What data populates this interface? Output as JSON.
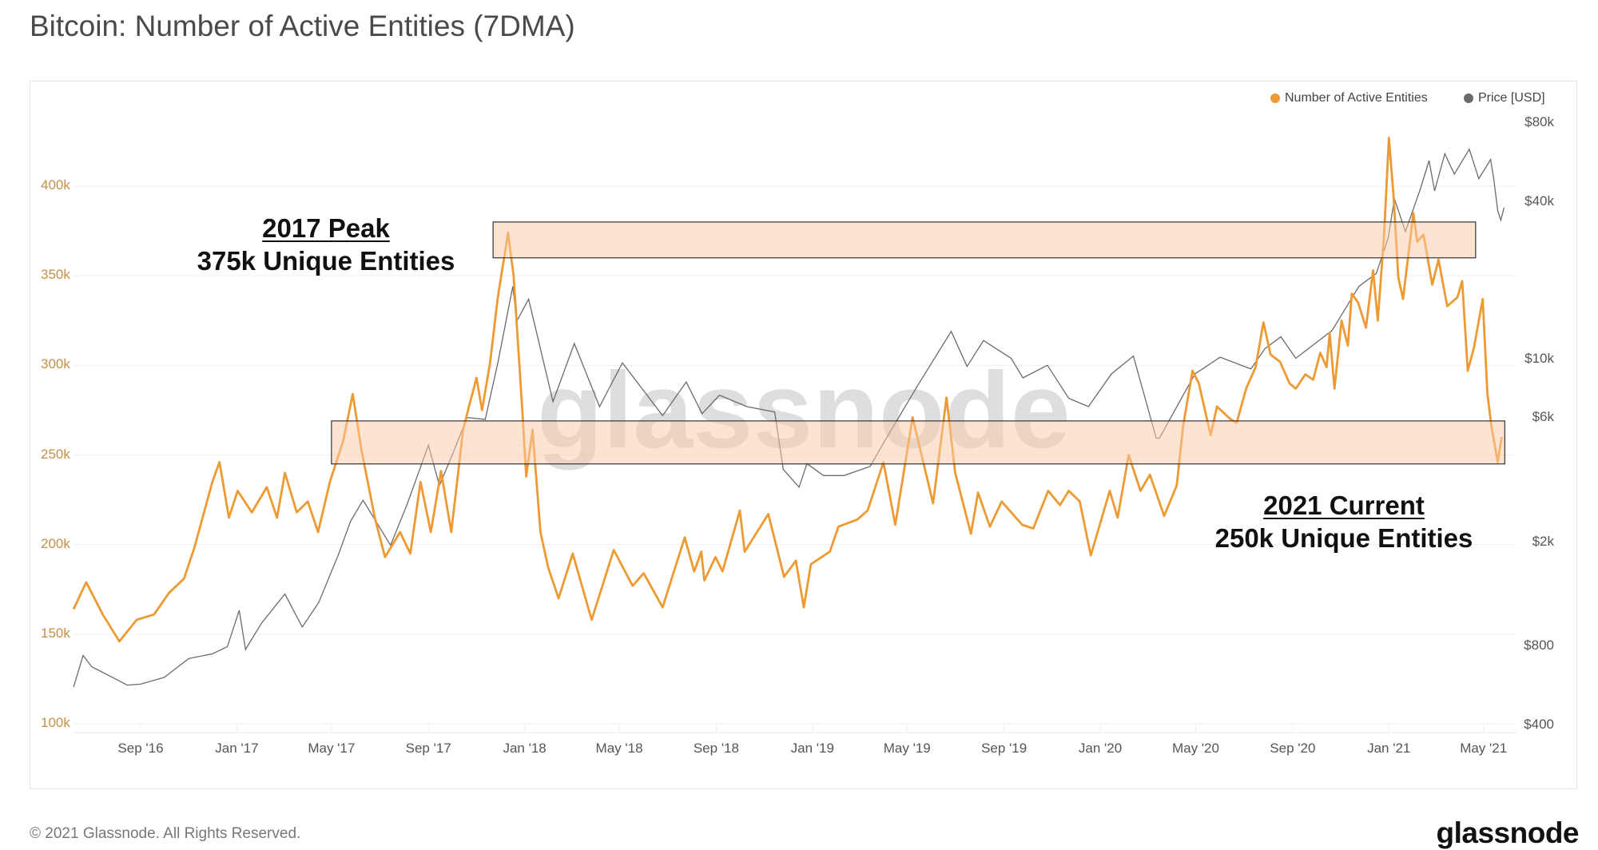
{
  "title": "Bitcoin: Number of Active Entities (7DMA)",
  "footer": {
    "copyright": "© 2021 Glassnode. All Rights Reserved.",
    "logo": "glassnode"
  },
  "watermark": "glassnode",
  "colors": {
    "entities": "#ee9a33",
    "price": "#6b6b6b",
    "band_fill": "#fbc9a6",
    "band_stroke": "#333333",
    "left_axis": "#c39049"
  },
  "annotations": {
    "peak_title": "2017 Peak",
    "peak_sub": "375k Unique Entities",
    "current_title": "2021 Current",
    "current_sub": "250k Unique Entities"
  },
  "chart_data": {
    "type": "line",
    "title": "Bitcoin: Number of Active Entities (7DMA)",
    "legend": {
      "position": "top-right",
      "items": [
        "Number of Active Entities",
        "Price [USD]"
      ]
    },
    "left_axis": {
      "scale": "linear",
      "range": [
        100,
        430
      ],
      "ticks": [
        {
          "v": 100,
          "label": "100k"
        },
        {
          "v": 150,
          "label": "150k"
        },
        {
          "v": 200,
          "label": "200k"
        },
        {
          "v": 250,
          "label": "250k"
        },
        {
          "v": 300,
          "label": "300k"
        },
        {
          "v": 350,
          "label": "350k"
        },
        {
          "v": 400,
          "label": "400k"
        }
      ]
    },
    "right_axis": {
      "scale": "log",
      "range": [
        400,
        80000
      ],
      "ticks": [
        {
          "v": 80000,
          "label": "$80k"
        },
        {
          "v": 40000,
          "label": "$40k"
        },
        {
          "v": 10000,
          "label": "$10k"
        },
        {
          "v": 6000,
          "label": "$6k"
        },
        {
          "v": 2000,
          "label": "$2k"
        },
        {
          "v": 800,
          "label": "$800"
        },
        {
          "v": 400,
          "label": "$400"
        }
      ]
    },
    "x_ticks": [
      {
        "date": "2016-09-01",
        "label": "Sep '16"
      },
      {
        "date": "2017-01-01",
        "label": "Jan '17"
      },
      {
        "date": "2017-05-01",
        "label": "May '17"
      },
      {
        "date": "2017-09-01",
        "label": "Sep '17"
      },
      {
        "date": "2018-01-01",
        "label": "Jan '18"
      },
      {
        "date": "2018-05-01",
        "label": "May '18"
      },
      {
        "date": "2018-09-01",
        "label": "Sep '18"
      },
      {
        "date": "2019-01-01",
        "label": "Jan '19"
      },
      {
        "date": "2019-05-01",
        "label": "May '19"
      },
      {
        "date": "2019-09-01",
        "label": "Sep '19"
      },
      {
        "date": "2020-01-01",
        "label": "Jan '20"
      },
      {
        "date": "2020-05-01",
        "label": "May '20"
      },
      {
        "date": "2020-09-01",
        "label": "Sep '20"
      },
      {
        "date": "2021-01-01",
        "label": "Jan '21"
      },
      {
        "date": "2021-05-01",
        "label": "May '21"
      }
    ],
    "bands": [
      {
        "name": "2017 peak band",
        "date_range": [
          "2017-11-22",
          "2021-04-21"
        ],
        "value_range": [
          360,
          380
        ]
      },
      {
        "name": "2021 current band",
        "date_range": [
          "2017-05-01",
          "2021-05-28"
        ],
        "value_range": [
          245,
          269
        ]
      }
    ],
    "series": [
      {
        "name": "Number of Active Entities",
        "unit": "thousands",
        "axis": "left",
        "points": [
          [
            "2016-06-08",
            164
          ],
          [
            "2016-06-24",
            179
          ],
          [
            "2016-07-15",
            161
          ],
          [
            "2016-08-05",
            146
          ],
          [
            "2016-08-27",
            158
          ],
          [
            "2016-09-18",
            161
          ],
          [
            "2016-10-07",
            173
          ],
          [
            "2016-10-26",
            181
          ],
          [
            "2016-11-08",
            198
          ],
          [
            "2016-12-01",
            235
          ],
          [
            "2016-12-10",
            246
          ],
          [
            "2016-12-22",
            215
          ],
          [
            "2017-01-02",
            230
          ],
          [
            "2017-01-20",
            218
          ],
          [
            "2017-02-08",
            232
          ],
          [
            "2017-02-21",
            215
          ],
          [
            "2017-03-03",
            240
          ],
          [
            "2017-03-18",
            218
          ],
          [
            "2017-04-01",
            224
          ],
          [
            "2017-04-14",
            207
          ],
          [
            "2017-04-29",
            235
          ],
          [
            "2017-05-16",
            258
          ],
          [
            "2017-05-28",
            284
          ],
          [
            "2017-06-08",
            253
          ],
          [
            "2017-06-25",
            215
          ],
          [
            "2017-07-08",
            193
          ],
          [
            "2017-07-27",
            207
          ],
          [
            "2017-08-09",
            195
          ],
          [
            "2017-08-22",
            235
          ],
          [
            "2017-09-04",
            207
          ],
          [
            "2017-09-17",
            241
          ],
          [
            "2017-09-30",
            207
          ],
          [
            "2017-10-15",
            264
          ],
          [
            "2017-10-23",
            278
          ],
          [
            "2017-11-01",
            293
          ],
          [
            "2017-11-08",
            275
          ],
          [
            "2017-11-18",
            301
          ],
          [
            "2017-11-28",
            338
          ],
          [
            "2017-12-11",
            374
          ],
          [
            "2017-12-18",
            350
          ],
          [
            "2017-12-29",
            275
          ],
          [
            "2018-01-03",
            238
          ],
          [
            "2018-01-11",
            264
          ],
          [
            "2018-01-21",
            207
          ],
          [
            "2018-01-31",
            187
          ],
          [
            "2018-02-13",
            170
          ],
          [
            "2018-03-03",
            195
          ],
          [
            "2018-03-27",
            158
          ],
          [
            "2018-04-24",
            197
          ],
          [
            "2018-05-18",
            177
          ],
          [
            "2018-06-01",
            184
          ],
          [
            "2018-06-25",
            165
          ],
          [
            "2018-07-23",
            204
          ],
          [
            "2018-08-04",
            185
          ],
          [
            "2018-08-13",
            196
          ],
          [
            "2018-08-17",
            180
          ],
          [
            "2018-08-31",
            193
          ],
          [
            "2018-09-09",
            185
          ],
          [
            "2018-10-01",
            219
          ],
          [
            "2018-10-07",
            196
          ],
          [
            "2018-11-06",
            217
          ],
          [
            "2018-11-26",
            182
          ],
          [
            "2018-12-11",
            191
          ],
          [
            "2018-12-21",
            165
          ],
          [
            "2018-12-30",
            189
          ],
          [
            "2019-01-23",
            196
          ],
          [
            "2019-02-03",
            210
          ],
          [
            "2019-02-27",
            214
          ],
          [
            "2019-03-12",
            219
          ],
          [
            "2019-04-01",
            246
          ],
          [
            "2019-04-16",
            211
          ],
          [
            "2019-05-08",
            271
          ],
          [
            "2019-06-03",
            223
          ],
          [
            "2019-06-20",
            282
          ],
          [
            "2019-07-01",
            240
          ],
          [
            "2019-07-21",
            206
          ],
          [
            "2019-07-30",
            229
          ],
          [
            "2019-08-14",
            210
          ],
          [
            "2019-08-29",
            224
          ],
          [
            "2019-09-24",
            211
          ],
          [
            "2019-10-08",
            209
          ],
          [
            "2019-10-27",
            230
          ],
          [
            "2019-11-11",
            222
          ],
          [
            "2019-11-22",
            230
          ],
          [
            "2019-12-06",
            224
          ],
          [
            "2019-12-20",
            194
          ],
          [
            "2020-01-13",
            230
          ],
          [
            "2020-01-23",
            215
          ],
          [
            "2020-02-06",
            250
          ],
          [
            "2020-02-21",
            230
          ],
          [
            "2020-03-04",
            239
          ],
          [
            "2020-03-22",
            216
          ],
          [
            "2020-04-07",
            233
          ],
          [
            "2020-04-15",
            266
          ],
          [
            "2020-04-27",
            297
          ],
          [
            "2020-05-05",
            290
          ],
          [
            "2020-05-20",
            261
          ],
          [
            "2020-05-28",
            277
          ],
          [
            "2020-06-14",
            270
          ],
          [
            "2020-06-22",
            268
          ],
          [
            "2020-07-04",
            287
          ],
          [
            "2020-07-16",
            299
          ],
          [
            "2020-07-26",
            324
          ],
          [
            "2020-08-04",
            306
          ],
          [
            "2020-08-16",
            302
          ],
          [
            "2020-08-28",
            290
          ],
          [
            "2020-09-05",
            287
          ],
          [
            "2020-09-17",
            295
          ],
          [
            "2020-09-27",
            292
          ],
          [
            "2020-10-06",
            307
          ],
          [
            "2020-10-14",
            299
          ],
          [
            "2020-10-18",
            318
          ],
          [
            "2020-10-24",
            287
          ],
          [
            "2020-11-02",
            325
          ],
          [
            "2020-11-10",
            311
          ],
          [
            "2020-11-15",
            340
          ],
          [
            "2020-11-23",
            335
          ],
          [
            "2020-12-03",
            321
          ],
          [
            "2020-12-12",
            353
          ],
          [
            "2020-12-18",
            325
          ],
          [
            "2020-12-26",
            373
          ],
          [
            "2021-01-01",
            427
          ],
          [
            "2021-01-07",
            394
          ],
          [
            "2021-01-13",
            349
          ],
          [
            "2021-01-19",
            337
          ],
          [
            "2021-01-25",
            359
          ],
          [
            "2021-02-01",
            385
          ],
          [
            "2021-02-06",
            369
          ],
          [
            "2021-02-14",
            373
          ],
          [
            "2021-02-25",
            345
          ],
          [
            "2021-03-05",
            359
          ],
          [
            "2021-03-16",
            333
          ],
          [
            "2021-03-29",
            338
          ],
          [
            "2021-04-04",
            347
          ],
          [
            "2021-04-11",
            297
          ],
          [
            "2021-04-19",
            310
          ],
          [
            "2021-04-30",
            337
          ],
          [
            "2021-05-06",
            284
          ],
          [
            "2021-05-11",
            266
          ],
          [
            "2021-05-19",
            246
          ],
          [
            "2021-05-24",
            260
          ]
        ]
      },
      {
        "name": "Price [USD]",
        "unit": "USD",
        "axis": "right",
        "points": [
          [
            "2016-06-08",
            560
          ],
          [
            "2016-06-20",
            740
          ],
          [
            "2016-07-01",
            670
          ],
          [
            "2016-08-01",
            600
          ],
          [
            "2016-08-15",
            570
          ],
          [
            "2016-09-01",
            575
          ],
          [
            "2016-10-01",
            610
          ],
          [
            "2016-11-01",
            720
          ],
          [
            "2016-12-01",
            750
          ],
          [
            "2016-12-20",
            800
          ],
          [
            "2017-01-04",
            1100
          ],
          [
            "2017-01-12",
            780
          ],
          [
            "2017-02-01",
            980
          ],
          [
            "2017-03-03",
            1270
          ],
          [
            "2017-03-25",
            950
          ],
          [
            "2017-04-15",
            1180
          ],
          [
            "2017-05-10",
            1800
          ],
          [
            "2017-05-25",
            2400
          ],
          [
            "2017-06-10",
            2900
          ],
          [
            "2017-07-15",
            1950
          ],
          [
            "2017-08-05",
            2800
          ],
          [
            "2017-09-01",
            4700
          ],
          [
            "2017-09-15",
            3300
          ],
          [
            "2017-10-01",
            4300
          ],
          [
            "2017-10-20",
            6000
          ],
          [
            "2017-11-12",
            5900
          ],
          [
            "2017-11-28",
            9700
          ],
          [
            "2017-12-17",
            19000
          ],
          [
            "2017-12-22",
            14000
          ],
          [
            "2018-01-06",
            17000
          ],
          [
            "2018-02-06",
            6900
          ],
          [
            "2018-03-05",
            11500
          ],
          [
            "2018-04-06",
            6600
          ],
          [
            "2018-05-05",
            9700
          ],
          [
            "2018-06-25",
            6100
          ],
          [
            "2018-07-25",
            8200
          ],
          [
            "2018-08-14",
            6200
          ],
          [
            "2018-09-05",
            7300
          ],
          [
            "2018-10-10",
            6600
          ],
          [
            "2018-11-14",
            6300
          ],
          [
            "2018-11-25",
            3800
          ],
          [
            "2018-12-15",
            3250
          ],
          [
            "2018-12-25",
            4000
          ],
          [
            "2019-01-15",
            3600
          ],
          [
            "2019-02-10",
            3600
          ],
          [
            "2019-03-15",
            3900
          ],
          [
            "2019-04-03",
            4900
          ],
          [
            "2019-05-15",
            8000
          ],
          [
            "2019-06-26",
            12800
          ],
          [
            "2019-07-16",
            9400
          ],
          [
            "2019-08-06",
            11800
          ],
          [
            "2019-09-10",
            10100
          ],
          [
            "2019-09-25",
            8500
          ],
          [
            "2019-10-26",
            9500
          ],
          [
            "2019-11-22",
            7100
          ],
          [
            "2019-12-17",
            6600
          ],
          [
            "2020-01-15",
            8800
          ],
          [
            "2020-02-12",
            10300
          ],
          [
            "2020-03-12",
            5000
          ],
          [
            "2020-03-16",
            5000
          ],
          [
            "2020-04-30",
            8800
          ],
          [
            "2020-06-01",
            10200
          ],
          [
            "2020-07-10",
            9200
          ],
          [
            "2020-07-28",
            11000
          ],
          [
            "2020-08-17",
            12200
          ],
          [
            "2020-09-05",
            10100
          ],
          [
            "2020-10-21",
            12900
          ],
          [
            "2020-11-24",
            19000
          ],
          [
            "2020-12-16",
            21300
          ],
          [
            "2020-12-31",
            29000
          ],
          [
            "2021-01-08",
            41000
          ],
          [
            "2021-01-22",
            30800
          ],
          [
            "2021-02-10",
            44800
          ],
          [
            "2021-02-21",
            57500
          ],
          [
            "2021-02-28",
            44000
          ],
          [
            "2021-03-13",
            61000
          ],
          [
            "2021-03-25",
            51000
          ],
          [
            "2021-04-13",
            63500
          ],
          [
            "2021-04-25",
            49000
          ],
          [
            "2021-05-10",
            58000
          ],
          [
            "2021-05-14",
            49000
          ],
          [
            "2021-05-19",
            37000
          ],
          [
            "2021-05-23",
            34000
          ],
          [
            "2021-05-27",
            38000
          ]
        ]
      }
    ]
  }
}
